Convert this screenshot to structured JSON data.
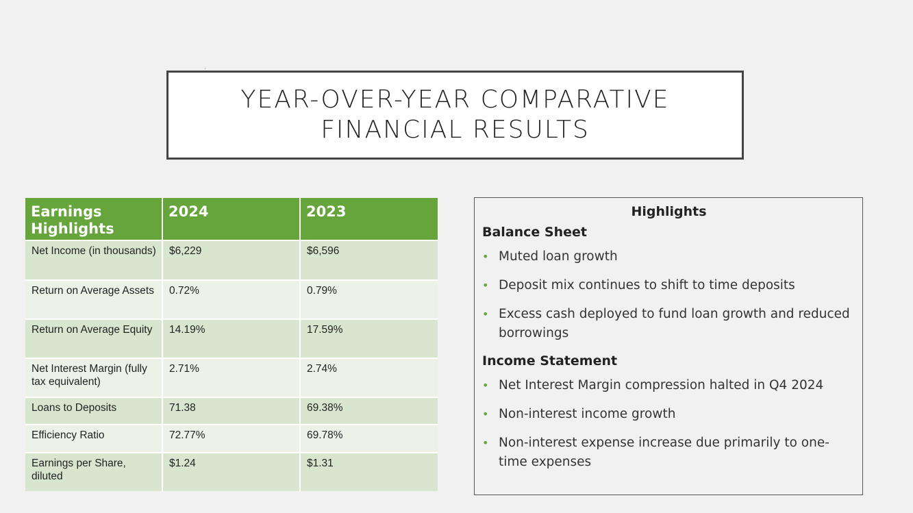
{
  "title": "YEAR-OVER-YEAR COMPARATIVE FINANCIAL RESULTS",
  "table": {
    "headers": [
      "Earnings Highlights",
      "2024",
      "2023"
    ],
    "rows": [
      [
        "Net Income (in thousands)",
        "$6,229",
        "$6,596"
      ],
      [
        "Return on Average Assets",
        "0.72%",
        "0.79%"
      ],
      [
        "Return on Average Equity",
        "14.19%",
        "17.59%"
      ],
      [
        "Net Interest Margin (fully tax equivalent)",
        "2.71%",
        "2.74%"
      ],
      [
        "Loans to Deposits",
        "71.38",
        "69.38%"
      ],
      [
        "Efficiency Ratio",
        "72.77%",
        "69.78%"
      ],
      [
        "Earnings per Share, diluted",
        "$1.24",
        "$1.31"
      ]
    ]
  },
  "highlights": {
    "title": "Highlights",
    "balance_sheet": {
      "heading": "Balance Sheet",
      "items": [
        "Muted loan growth",
        "Deposit mix continues to shift to time deposits",
        "Excess cash deployed to fund loan growth and reduced borrowings"
      ]
    },
    "income_statement": {
      "heading": "Income Statement",
      "items": [
        "Net Interest Margin compression halted in Q4 2024",
        "Non-interest income growth",
        "Non-interest expense increase due primarily to one-time expenses"
      ]
    }
  },
  "colors": {
    "header_green": "#66a53b",
    "row_dark": "#d8e6d0",
    "row_light": "#ecf2e8"
  }
}
